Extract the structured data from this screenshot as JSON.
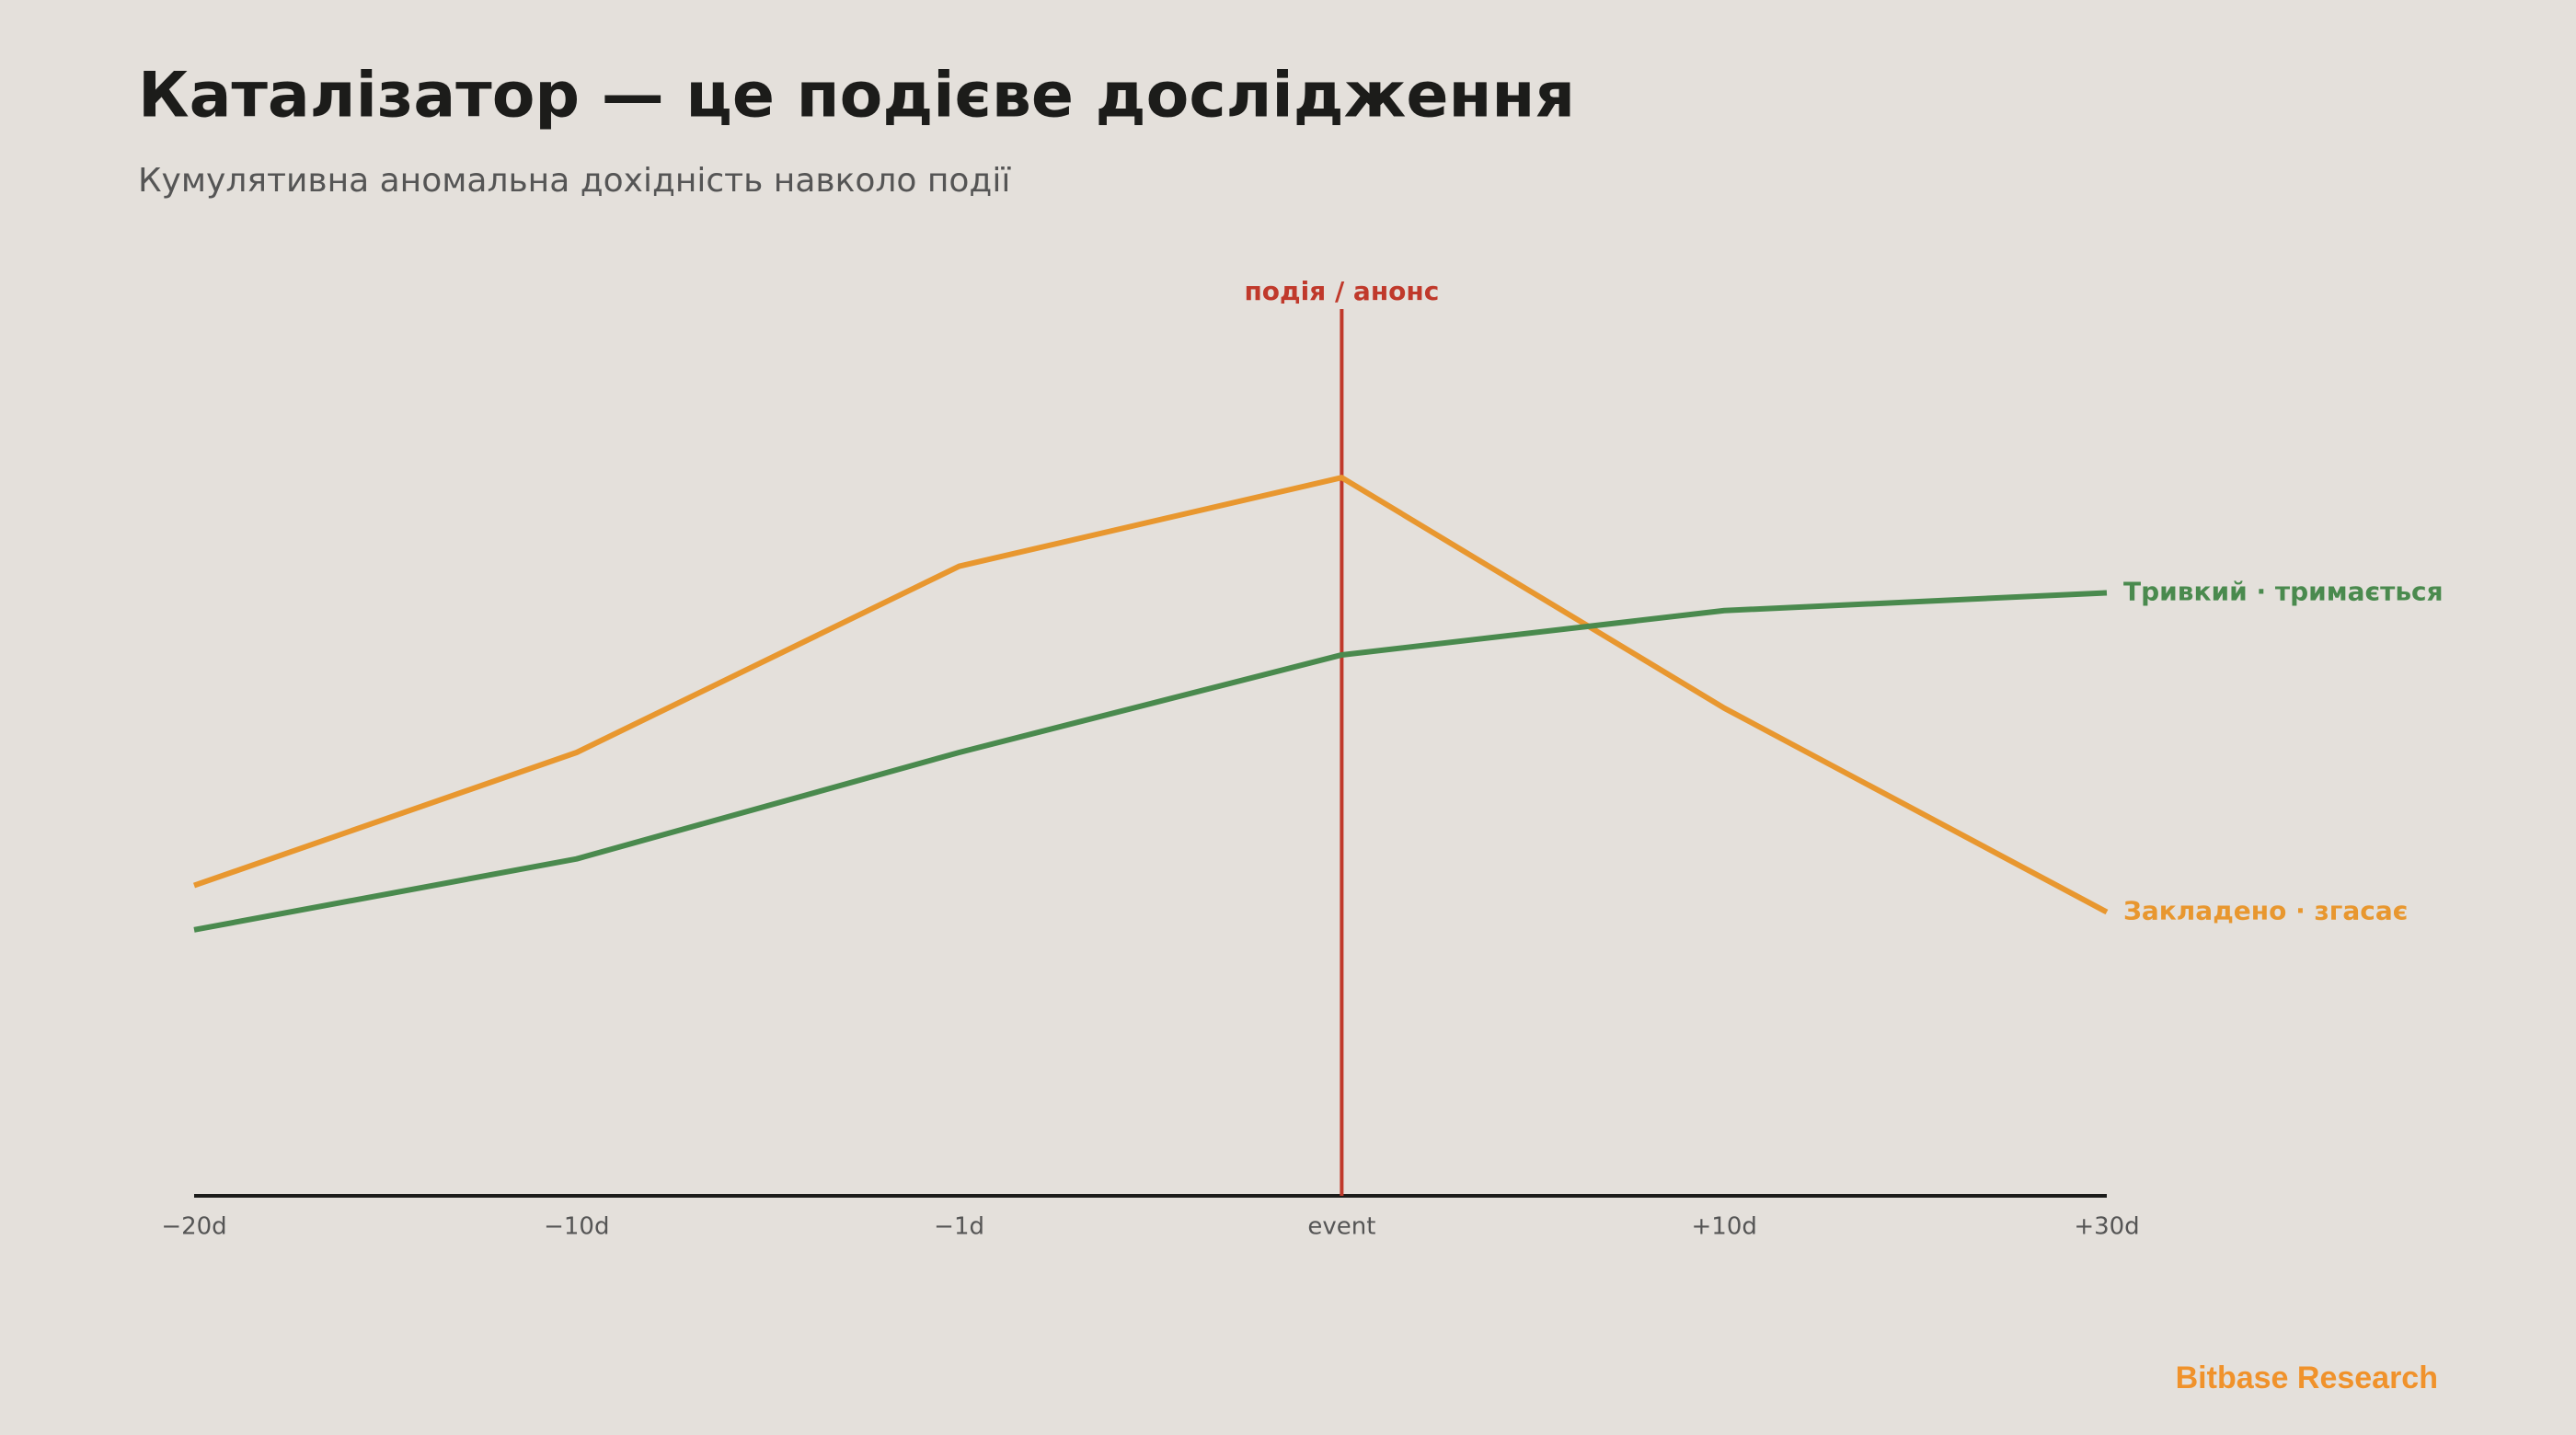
{
  "chart_data": {
    "type": "line",
    "title": "Каталізатор — це подієве дослідження",
    "subtitle": "Кумулятивна аномальна дохідність навколо події",
    "categories": [
      "−20d",
      "−10d",
      "−1d",
      "event",
      "+10d",
      "+30d"
    ],
    "series": [
      {
        "name": "Закладено · згасає",
        "color": "#e8972f",
        "values": [
          35,
          50,
          71,
          81,
          55,
          32
        ]
      },
      {
        "name": "Тривкий · тримається",
        "color": "#4a8a4e",
        "values": [
          30,
          38,
          50,
          61,
          66,
          68
        ]
      }
    ],
    "ylim": [
      0,
      100
    ],
    "annotation": {
      "text": "подія / анонс",
      "x": "event",
      "color": "#c0392b"
    },
    "footer": "Bitbase Research"
  }
}
